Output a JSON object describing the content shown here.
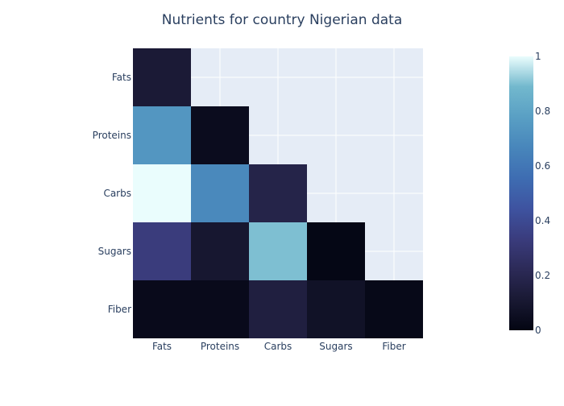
{
  "chart_data": {
    "type": "heatmap",
    "title": "Nutrients for country Nigerian data",
    "x_categories": [
      "Fats",
      "Proteins",
      "Carbs",
      "Sugars",
      "Fiber"
    ],
    "y_categories": [
      "Fats",
      "Proteins",
      "Carbs",
      "Sugars",
      "Fiber"
    ],
    "z": [
      [
        0.12,
        null,
        null,
        null,
        null
      ],
      [
        0.74,
        0.04,
        null,
        null,
        null
      ],
      [
        1.0,
        0.68,
        0.18,
        null,
        null
      ],
      [
        0.33,
        0.1,
        0.9,
        0.01,
        null
      ],
      [
        0.03,
        0.03,
        0.15,
        0.07,
        0.02
      ]
    ],
    "colorscale": "ice",
    "colorbar": {
      "range": [
        0,
        1
      ],
      "ticks": [
        "0",
        "0.2",
        "0.4",
        "0.6",
        "0.8",
        "1"
      ]
    },
    "background_color": "#e5ecf6",
    "grid": true,
    "legend": "colorbar-right"
  }
}
